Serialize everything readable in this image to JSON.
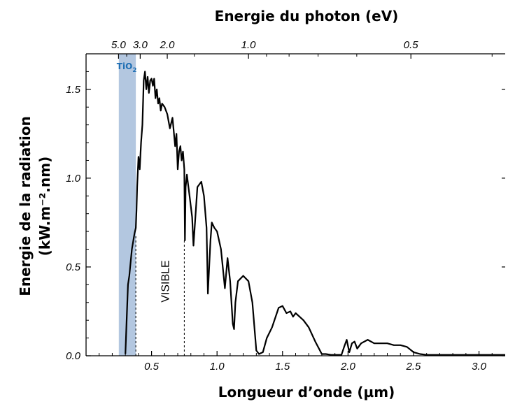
{
  "chart_data": {
    "type": "line",
    "title_top_axis": "Energie du photon (eV)",
    "xlabel": "Longueur d’onde (µm)",
    "ylabel_line1": "Energie de la radiation",
    "ylabel_line2": "(kW.m⁻².nm)",
    "xlim": [
      0.0,
      3.2
    ],
    "ylim": [
      0.0,
      1.7
    ],
    "x_ticks": [
      0.5,
      1.0,
      1.5,
      2.0,
      2.5,
      3.0
    ],
    "x_tick_labels": [
      "0.5",
      "1.0",
      "1.5",
      "2.0",
      "2.5",
      "3.0"
    ],
    "y_ticks": [
      0.0,
      0.5,
      1.0,
      1.5
    ],
    "y_tick_labels": [
      "0.0",
      "0.5",
      "1.0",
      "1.5"
    ],
    "top_ticks_ev": [
      5.0,
      3.0,
      2.0,
      1.0,
      0.5
    ],
    "top_tick_labels": [
      "5.0",
      "3.0",
      "2.0",
      "1.0",
      "0.5"
    ],
    "band": {
      "label_main": "TiO",
      "label_sub": "2",
      "x_range": [
        0.25,
        0.38
      ],
      "color": "#b3c7e0"
    },
    "annotation_visible": {
      "label": "VISIBLE",
      "x": 0.75
    },
    "series": [
      {
        "color": "#000000",
        "x": [
          0.3,
          0.31,
          0.32,
          0.33,
          0.35,
          0.37,
          0.38,
          0.385,
          0.39,
          0.4,
          0.41,
          0.42,
          0.43,
          0.44,
          0.45,
          0.46,
          0.47,
          0.48,
          0.49,
          0.5,
          0.51,
          0.52,
          0.53,
          0.54,
          0.55,
          0.56,
          0.57,
          0.58,
          0.6,
          0.62,
          0.64,
          0.66,
          0.68,
          0.69,
          0.7,
          0.71,
          0.72,
          0.73,
          0.74,
          0.75,
          0.755,
          0.76,
          0.77,
          0.79,
          0.81,
          0.82,
          0.85,
          0.88,
          0.9,
          0.92,
          0.93,
          0.95,
          0.96,
          0.98,
          1.0,
          1.03,
          1.06,
          1.08,
          1.1,
          1.12,
          1.13,
          1.14,
          1.16,
          1.2,
          1.24,
          1.27,
          1.3,
          1.32,
          1.35,
          1.38,
          1.42,
          1.47,
          1.5,
          1.53,
          1.56,
          1.58,
          1.6,
          1.63,
          1.66,
          1.7,
          1.75,
          1.8,
          1.83,
          1.87,
          1.9,
          1.95,
          1.97,
          1.99,
          2.01,
          2.03,
          2.05,
          2.07,
          2.1,
          2.15,
          2.2,
          2.3,
          2.35,
          2.4,
          2.45,
          2.5,
          2.55,
          2.6,
          2.7,
          2.8,
          2.9,
          3.0,
          3.2
        ],
        "y": [
          0.01,
          0.2,
          0.4,
          0.45,
          0.6,
          0.69,
          0.72,
          0.82,
          0.95,
          1.12,
          1.05,
          1.2,
          1.3,
          1.55,
          1.6,
          1.5,
          1.57,
          1.48,
          1.55,
          1.56,
          1.52,
          1.56,
          1.45,
          1.5,
          1.42,
          1.45,
          1.38,
          1.42,
          1.4,
          1.36,
          1.28,
          1.34,
          1.18,
          1.25,
          1.05,
          1.15,
          1.18,
          1.1,
          1.15,
          1.05,
          0.65,
          0.95,
          1.02,
          0.9,
          0.78,
          0.62,
          0.95,
          0.98,
          0.9,
          0.72,
          0.35,
          0.65,
          0.75,
          0.72,
          0.7,
          0.6,
          0.38,
          0.55,
          0.42,
          0.18,
          0.15,
          0.3,
          0.42,
          0.45,
          0.42,
          0.3,
          0.03,
          0.01,
          0.02,
          0.1,
          0.16,
          0.27,
          0.28,
          0.24,
          0.25,
          0.22,
          0.24,
          0.22,
          0.2,
          0.16,
          0.08,
          0.01,
          0.01,
          0.005,
          0.005,
          0.005,
          0.05,
          0.09,
          0.02,
          0.07,
          0.08,
          0.04,
          0.07,
          0.09,
          0.07,
          0.07,
          0.06,
          0.06,
          0.05,
          0.02,
          0.01,
          0.005,
          0.005,
          0.005,
          0.005,
          0.005,
          0.005
        ]
      }
    ]
  }
}
